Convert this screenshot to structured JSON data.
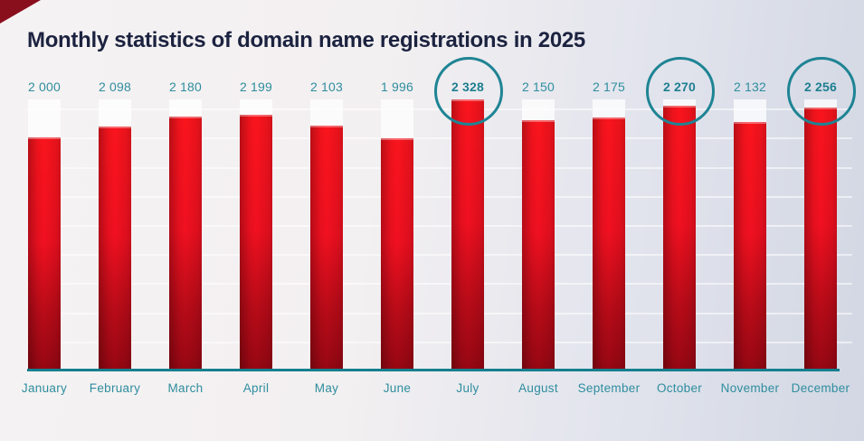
{
  "title": "Monthly statistics of domain name registrations in 2025",
  "chart_data": {
    "type": "bar",
    "title": "Monthly statistics of domain name registrations in 2025",
    "categories": [
      "January",
      "February",
      "March",
      "April",
      "May",
      "June",
      "July",
      "August",
      "September",
      "October",
      "November",
      "December"
    ],
    "values": [
      2000,
      2098,
      2180,
      2199,
      2103,
      1996,
      2328,
      2150,
      2175,
      2270,
      2132,
      2256
    ],
    "value_labels": [
      "2 000",
      "2 098",
      "2 180",
      "2 199",
      "2 103",
      "1 996",
      "2 328",
      "2 150",
      "2 175",
      "2 270",
      "2 132",
      "2 256"
    ],
    "highlighted_months": [
      "July",
      "October",
      "December"
    ],
    "xlabel": "",
    "ylabel": "",
    "ylim": [
      0,
      2328
    ],
    "grid": "faint horizontal white lines",
    "legend": "none"
  },
  "colors": {
    "background_left": "#f3f0f1",
    "background_right": "#d2d7e3",
    "title_text": "#1c2340",
    "label_teal": "#2f8e9e",
    "highlight_teal": "#1d7f90",
    "baseline_teal": "#147f8e",
    "bar_red_top": "#fa141d",
    "bar_red_bottom": "#960713",
    "track_white": "rgba(255,255,255,0.75)",
    "corner_red": "#8a0f1d"
  }
}
